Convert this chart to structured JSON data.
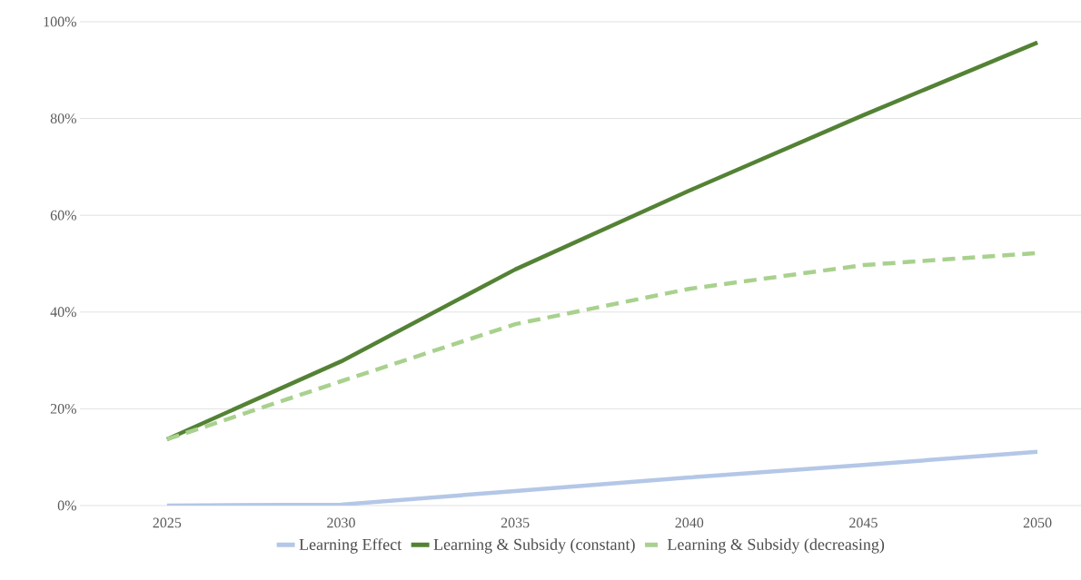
{
  "chart_data": {
    "type": "line",
    "categories": [
      "2025",
      "2030",
      "2035",
      "2040",
      "2045",
      "2050"
    ],
    "series": [
      {
        "name": "Learning Effect",
        "color": "#b4c7e7",
        "values": [
          0,
          0.2,
          3.0,
          5.8,
          8.4,
          11.1
        ]
      },
      {
        "name": "Learning & Subsidy (constant)",
        "color": "#548235",
        "values": [
          13.7,
          29.8,
          48.8,
          65.1,
          80.7,
          95.7
        ]
      },
      {
        "name": "Learning & Subsidy (decreasing)",
        "color": "#a9d18e",
        "line_style": "dashed",
        "values": [
          13.7,
          25.7,
          37.5,
          44.8,
          49.7,
          52.2
        ]
      }
    ],
    "ylim": [
      0,
      100
    ],
    "yticks": [
      {
        "value": 0,
        "label": "0%"
      },
      {
        "value": 20,
        "label": "20%"
      },
      {
        "value": 40,
        "label": "40%"
      },
      {
        "value": 60,
        "label": "60%"
      },
      {
        "value": 80,
        "label": "80%"
      },
      {
        "value": 100,
        "label": "100%"
      }
    ],
    "grid": "y",
    "legend": "bottom",
    "marker": "none"
  }
}
